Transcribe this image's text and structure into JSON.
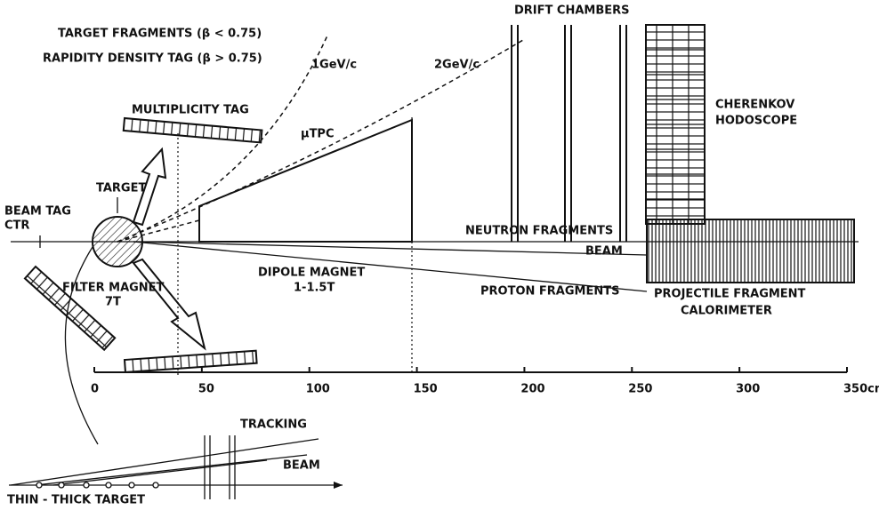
{
  "labels": {
    "target_fragments": "TARGET FRAGMENTS (β < 0.75)",
    "rapidity_tag": "RAPIDITY DENSITY TAG (β > 0.75)",
    "gev1": "1GeV/c",
    "gev2": "2GeV/c",
    "drift_chambers": "DRIFT CHAMBERS",
    "cherenkov": [
      "CHERENKOV",
      "HODOSCOPE"
    ],
    "multiplicity_tag": "MULTIPLICITY TAG",
    "mutpc": "μTPC",
    "target": "TARGET",
    "beam_tag": [
      "BEAM TAG",
      "CTR"
    ],
    "neutron_fragments": "NEUTRON FRAGMENTS",
    "beam": "BEAM",
    "dipole_magnet": [
      "DIPOLE MAGNET",
      "1-1.5T"
    ],
    "filter_magnet": [
      "FILTER MAGNET",
      "7T"
    ],
    "proton_fragments": "PROTON FRAGMENTS",
    "calorimeter": [
      "PROJECTILE FRAGMENT",
      "CALORIMETER"
    ],
    "tracking": "TRACKING",
    "inset_beam": "BEAM",
    "thin_thick_target": "THIN - THICK TARGET"
  },
  "scale": {
    "ticks": [
      "0",
      "50",
      "100",
      "150",
      "200",
      "250",
      "300",
      "350cm"
    ]
  }
}
